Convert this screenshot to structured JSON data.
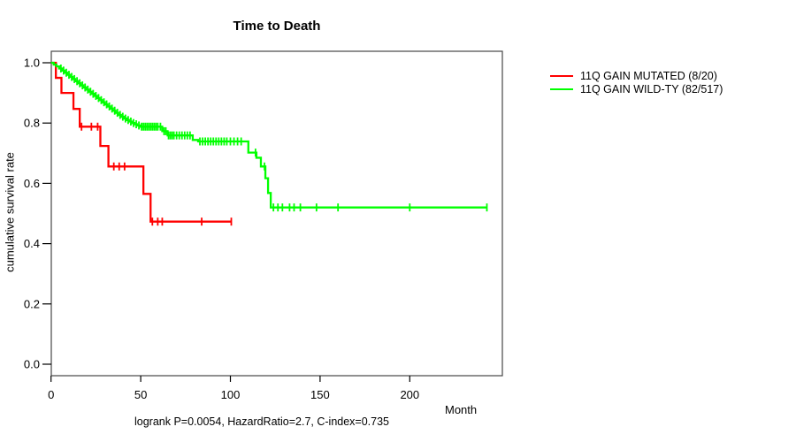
{
  "title": "Time to Death",
  "y_axis_label": "cumulative survival rate",
  "x_axis_label": "Month",
  "caption": "logrank P=0.0054, HazardRatio=2.7, C-index=0.735",
  "legend": {
    "items": [
      {
        "label": "11Q GAIN MUTATED (8/20)",
        "color": "#ff0000"
      },
      {
        "label": "11Q GAIN WILD-TY (82/517)",
        "color": "#00ff00"
      }
    ]
  },
  "chart_data": {
    "type": "line",
    "subtype": "kaplan-meier-step-function",
    "title": "Time to Death",
    "xlabel": "Month",
    "ylabel": "cumulative survival rate",
    "xlim": [
      0,
      251
    ],
    "ylim": [
      0,
      1
    ],
    "x_ticks": [
      "0",
      "50",
      "100",
      "150",
      "200"
    ],
    "y_ticks": [
      "0.0",
      "0.2",
      "0.4",
      "0.6",
      "0.8",
      "1.0"
    ],
    "grid": false,
    "legend_position": "right-outside",
    "annotations": [
      "logrank P=0.0054, HazardRatio=2.7, C-index=0.735"
    ],
    "series": [
      {
        "name": "11Q GAIN MUTATED (8/20)",
        "color": "#ff0000",
        "events_over_total": "8/20",
        "steps": [
          [
            0,
            1.0
          ],
          [
            2.7,
            0.95
          ],
          [
            5.8,
            0.9
          ],
          [
            12.5,
            0.847
          ],
          [
            16,
            0.788
          ],
          [
            27.5,
            0.724
          ],
          [
            32,
            0.656
          ],
          [
            51.5,
            0.565
          ],
          [
            55.5,
            0.473
          ]
        ],
        "end_month": 100.5,
        "censor_months": [
          17,
          22.5,
          26,
          35,
          38,
          41,
          56.5,
          59.5,
          62,
          84,
          100.5
        ]
      },
      {
        "name": "11Q GAIN WILD-TY (82/517)",
        "color": "#00ff00",
        "events_over_total": "82/517",
        "steps": [
          [
            0,
            1.0
          ],
          [
            1.5,
            0.994
          ],
          [
            3,
            0.988
          ],
          [
            4.5,
            0.981
          ],
          [
            6,
            0.974
          ],
          [
            7.5,
            0.967
          ],
          [
            9,
            0.96
          ],
          [
            10.5,
            0.953
          ],
          [
            12,
            0.946
          ],
          [
            13.5,
            0.939
          ],
          [
            15,
            0.932
          ],
          [
            16.5,
            0.925
          ],
          [
            18,
            0.918
          ],
          [
            19.5,
            0.911
          ],
          [
            21,
            0.904
          ],
          [
            22.5,
            0.897
          ],
          [
            24,
            0.89
          ],
          [
            25.5,
            0.883
          ],
          [
            27,
            0.876
          ],
          [
            28.5,
            0.869
          ],
          [
            30,
            0.862
          ],
          [
            31.5,
            0.855
          ],
          [
            33,
            0.848
          ],
          [
            34.5,
            0.841
          ],
          [
            36,
            0.834
          ],
          [
            37.5,
            0.827
          ],
          [
            39,
            0.821
          ],
          [
            40.5,
            0.815
          ],
          [
            42,
            0.81
          ],
          [
            43.5,
            0.805
          ],
          [
            45,
            0.8
          ],
          [
            46.5,
            0.796
          ],
          [
            48,
            0.792
          ],
          [
            50,
            0.788
          ],
          [
            62,
            0.773
          ],
          [
            65,
            0.759
          ],
          [
            79,
            0.744
          ],
          [
            82,
            0.739
          ],
          [
            110,
            0.702
          ],
          [
            114.5,
            0.685
          ],
          [
            117,
            0.656
          ],
          [
            119.5,
            0.617
          ],
          [
            121,
            0.568
          ],
          [
            122.5,
            0.52
          ]
        ],
        "end_month": 243,
        "censor_months": [
          5.5,
          7,
          8.5,
          10,
          11.5,
          13,
          14.5,
          16,
          17.5,
          19,
          20.5,
          22,
          23.5,
          25,
          26.5,
          28,
          29.5,
          31,
          32.5,
          34,
          35.5,
          37,
          38.5,
          40,
          41.5,
          43,
          44.5,
          46,
          47.5,
          49,
          50.5,
          51.5,
          52.5,
          53.5,
          54.5,
          55.5,
          56.5,
          57.5,
          58.5,
          59.5,
          61,
          63,
          64,
          65.5,
          66.5,
          67.5,
          68.5,
          70,
          71.5,
          73,
          74.5,
          76,
          77.5,
          83,
          84.5,
          86,
          87.5,
          89,
          90.5,
          92,
          93.5,
          95,
          96.5,
          98,
          100,
          102,
          104,
          106,
          114,
          119,
          124,
          126.5,
          129,
          133,
          135.5,
          139,
          148,
          160,
          200,
          243
        ]
      }
    ]
  }
}
